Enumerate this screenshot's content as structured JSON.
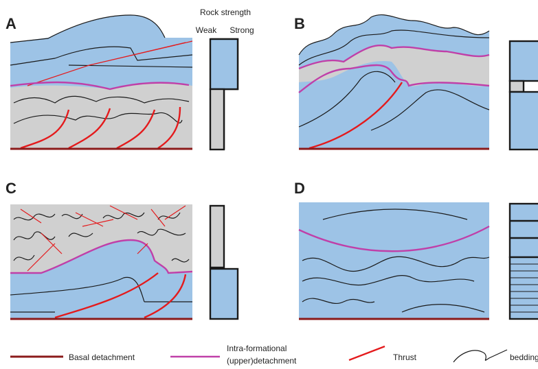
{
  "panels": [
    {
      "label": "A"
    },
    {
      "label": "B"
    },
    {
      "label": "C"
    },
    {
      "label": "D"
    }
  ],
  "rock_strength": {
    "title": "Rock strength",
    "weak": "Weak",
    "strong": "Strong"
  },
  "legend": [
    {
      "lines": [
        "Basal detachment"
      ]
    },
    {
      "lines": [
        "Intra-formational",
        "(upper)detachment"
      ]
    },
    {
      "lines": [
        "Thrust"
      ]
    },
    {
      "lines": [
        "bedding"
      ]
    }
  ]
}
